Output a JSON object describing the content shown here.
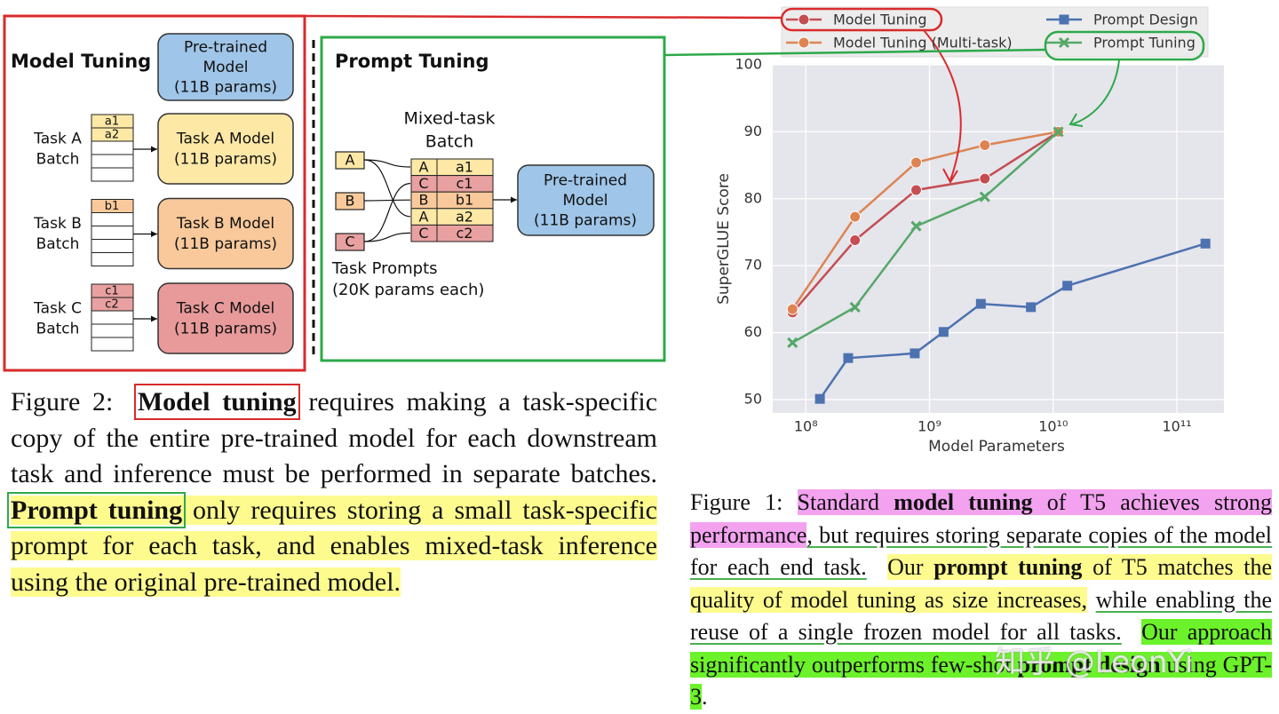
{
  "diagram": {
    "model_tuning": {
      "title": "Model Tuning",
      "pretrained": [
        "Pre-trained",
        "Model",
        "(11B params)"
      ],
      "tasks": [
        {
          "batch": [
            "Task A",
            "Batch"
          ],
          "rows": [
            "a1",
            "a2"
          ],
          "model": [
            "Task A Model",
            "(11B params)"
          ]
        },
        {
          "batch": [
            "Task B",
            "Batch"
          ],
          "rows": [
            "b1"
          ],
          "model": [
            "Task B Model",
            "(11B params)"
          ]
        },
        {
          "batch": [
            "Task C",
            "Batch"
          ],
          "rows": [
            "c1",
            "c2"
          ],
          "model": [
            "Task C Model",
            "(11B params)"
          ]
        }
      ]
    },
    "prompt_tuning": {
      "title": "Prompt Tuning",
      "prompts": [
        "A",
        "B",
        "C"
      ],
      "prompts_label": [
        "Task Prompts",
        "(20K params each)"
      ],
      "batch_label": [
        "Mixed-task",
        "Batch"
      ],
      "batch": [
        [
          "A",
          "a1"
        ],
        [
          "C",
          "c1"
        ],
        [
          "B",
          "b1"
        ],
        [
          "A",
          "a2"
        ],
        [
          "C",
          "c2"
        ]
      ],
      "pretrained": [
        "Pre-trained",
        "Model",
        "(11B params)"
      ]
    }
  },
  "figure2_caption": [
    "Figure 2:",
    "Model tuning",
    "requires making a task-specific copy of the entire pre-trained model for each downstream task and inference must be performed in separate batches.",
    "Prompt tuning",
    "only requires storing a small task-specific prompt for each task, and enables mixed-task inference using the original pre-trained model."
  ],
  "figure1_caption": [
    "Figure 1:",
    "Standard",
    "model tuning",
    "of T5 achieves strong performance",
    ", but requires storing separate copies of the model for each end task.",
    "Our",
    "prompt tuning",
    "of T5 matches the quality of model tuning as size increases,",
    "while enabling the reuse of a single frozen model for all tasks.",
    "Our approach significantly outperforms few-shot",
    "prompt design",
    "using GPT-3",
    "."
  ],
  "watermark": "知乎 @LeonYi",
  "chart_data": {
    "type": "line",
    "x_label": "Model Parameters",
    "y_label": "SuperGLUE Score",
    "xscale": "log",
    "xlim": [
      54000000,
      240000000000
    ],
    "ylim": [
      48,
      100
    ],
    "xticks": [
      {
        "value": 100000000,
        "label": "10⁸"
      },
      {
        "value": 1000000000,
        "label": "10⁹"
      },
      {
        "value": 10000000000,
        "label": "10¹⁰"
      },
      {
        "value": 100000000000,
        "label": "10¹¹"
      }
    ],
    "yticks": [
      50,
      60,
      70,
      80,
      90,
      100
    ],
    "grid": true,
    "series": [
      {
        "name": "Model Tuning",
        "color": "#c44e52",
        "marker": "o",
        "x": [
          78000000,
          250000000,
          780000000,
          2800000000,
          11000000000
        ],
        "values": [
          63.0,
          73.8,
          81.3,
          83.0,
          90.0
        ]
      },
      {
        "name": "Model Tuning (Multi-task)",
        "color": "#dd8452",
        "marker": "o",
        "x": [
          78000000,
          250000000,
          780000000,
          2800000000,
          11000000000
        ],
        "values": [
          63.5,
          77.3,
          85.4,
          88.0,
          90.0
        ]
      },
      {
        "name": "Prompt Design",
        "color": "#4c72b0",
        "marker": "s",
        "x": [
          130000000,
          220000000,
          760000000,
          1300000000,
          2600000000,
          6600000000,
          13000000000,
          170000000000
        ],
        "values": [
          50.1,
          56.2,
          56.9,
          60.1,
          64.3,
          63.8,
          67.0,
          73.3
        ]
      },
      {
        "name": "Prompt Tuning",
        "color": "#55a868",
        "marker": "x",
        "x": [
          78000000,
          250000000,
          780000000,
          2800000000,
          11000000000
        ],
        "values": [
          58.5,
          63.8,
          75.9,
          80.3,
          90.0
        ]
      }
    ]
  }
}
